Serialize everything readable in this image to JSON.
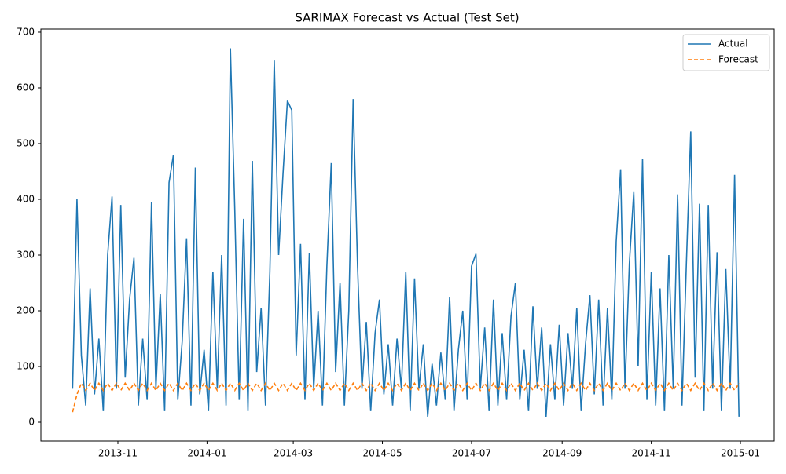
{
  "chart_data": {
    "type": "line",
    "title": "SARIMAX Forecast vs Actual (Test Set)",
    "x": [
      0,
      3,
      6,
      9,
      12,
      15,
      18,
      21,
      24,
      27,
      30,
      33,
      36,
      39,
      42,
      45,
      48,
      51,
      54,
      57,
      60,
      63,
      66,
      69,
      72,
      75,
      78,
      81,
      84,
      87,
      90,
      93,
      96,
      99,
      102,
      105,
      108,
      111,
      114,
      117,
      120,
      123,
      126,
      129,
      132,
      135,
      138,
      141,
      144,
      147,
      150,
      153,
      156,
      159,
      162,
      165,
      168,
      171,
      174,
      177,
      180,
      183,
      186,
      189,
      192,
      195,
      198,
      201,
      204,
      207,
      210,
      213,
      216,
      219,
      222,
      225,
      228,
      231,
      234,
      237,
      240,
      243,
      246,
      249,
      252,
      255,
      258,
      261,
      264,
      267,
      270,
      273,
      276,
      279,
      282,
      285,
      288,
      291,
      294,
      297,
      300,
      303,
      306,
      309,
      312,
      315,
      318,
      321,
      324,
      327,
      330,
      333,
      336,
      339,
      342,
      345,
      348,
      351,
      354,
      357,
      360,
      363,
      366,
      369,
      372,
      375,
      378,
      381,
      384,
      387,
      390,
      393,
      396,
      399,
      402,
      405,
      408,
      411,
      414,
      417,
      420,
      423,
      426,
      429,
      432,
      435,
      438,
      441,
      444,
      447,
      450,
      453,
      456
    ],
    "series": [
      {
        "name": "Actual",
        "color": "#1f77b4",
        "style": "solid",
        "values": [
          60,
          400,
          120,
          30,
          240,
          50,
          150,
          20,
          300,
          405,
          60,
          390,
          80,
          220,
          295,
          30,
          150,
          40,
          395,
          60,
          230,
          20,
          430,
          480,
          40,
          145,
          330,
          30,
          457,
          50,
          130,
          20,
          270,
          60,
          300,
          30,
          671,
          380,
          40,
          365,
          20,
          469,
          90,
          205,
          30,
          270,
          649,
          300,
          447,
          577,
          560,
          120,
          320,
          40,
          304,
          60,
          200,
          30,
          280,
          465,
          90,
          250,
          30,
          200,
          580,
          280,
          60,
          180,
          20,
          160,
          220,
          50,
          140,
          30,
          150,
          60,
          270,
          20,
          258,
          60,
          140,
          10,
          105,
          30,
          125,
          40,
          225,
          20,
          130,
          200,
          40,
          280,
          302,
          60,
          170,
          20,
          220,
          30,
          160,
          40,
          190,
          250,
          40,
          130,
          20,
          208,
          60,
          170,
          10,
          140,
          40,
          175,
          30,
          160,
          60,
          205,
          20,
          140,
          228,
          50,
          220,
          30,
          205,
          40,
          325,
          454,
          60,
          285,
          413,
          100,
          472,
          40,
          270,
          30,
          240,
          20,
          300,
          60,
          409,
          30,
          285,
          522,
          80,
          392,
          20,
          390,
          60,
          305,
          20,
          275,
          60,
          444,
          10
        ]
      },
      {
        "name": "Forecast",
        "color": "#ff7f0e",
        "style": "dashed",
        "values": [
          18,
          50,
          70,
          57,
          70,
          57,
          70,
          57,
          70,
          57,
          70,
          57,
          70,
          57,
          70,
          57,
          70,
          57,
          70,
          57,
          70,
          57,
          70,
          57,
          70,
          57,
          70,
          57,
          70,
          57,
          70,
          57,
          70,
          57,
          70,
          57,
          70,
          57,
          70,
          57,
          70,
          57,
          70,
          57,
          70,
          57,
          70,
          57,
          70,
          57,
          70,
          57,
          70,
          57,
          70,
          57,
          70,
          57,
          70,
          57,
          70,
          57,
          70,
          57,
          70,
          57,
          70,
          57,
          70,
          57,
          70,
          57,
          70,
          57,
          70,
          57,
          70,
          57,
          70,
          57,
          70,
          57,
          70,
          57,
          70,
          57,
          70,
          57,
          70,
          57,
          70,
          57,
          70,
          57,
          70,
          57,
          70,
          57,
          70,
          57,
          70,
          57,
          70,
          57,
          70,
          57,
          70,
          57,
          70,
          57,
          70,
          57,
          70,
          57,
          70,
          57,
          70,
          57,
          70,
          57,
          70,
          57,
          70,
          57,
          70,
          57,
          70,
          57,
          70,
          57,
          70,
          57,
          70,
          57,
          70,
          57,
          70,
          57,
          70,
          57,
          70,
          57,
          70,
          57,
          70,
          57,
          70,
          57,
          70,
          57,
          70,
          57,
          70
        ]
      }
    ],
    "xlim": [
      -21.7,
      480.1
    ],
    "xticks": [
      {
        "value": 31,
        "label": "2013-11"
      },
      {
        "value": 92,
        "label": "2014-01"
      },
      {
        "value": 151,
        "label": "2014-03"
      },
      {
        "value": 212,
        "label": "2014-05"
      },
      {
        "value": 273,
        "label": "2014-07"
      },
      {
        "value": 335,
        "label": "2014-09"
      },
      {
        "value": 396,
        "label": "2014-11"
      },
      {
        "value": 457,
        "label": "2015-01"
      }
    ],
    "ylim": [
      -33.8,
      705.6
    ],
    "yticks": [
      0,
      100,
      200,
      300,
      400,
      500,
      600,
      700
    ],
    "grid": false,
    "legend": "upper right"
  }
}
